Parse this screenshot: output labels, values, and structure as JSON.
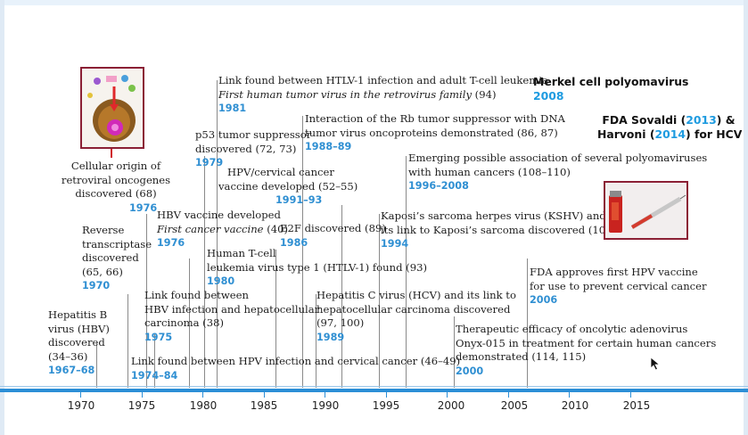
{
  "events": [
    {
      "id": "hbv",
      "lines": [
        "Hepatitis B",
        "virus (HBV)",
        "discovered",
        "(34–36)"
      ],
      "year": "1967–68"
    },
    {
      "id": "rt",
      "lines": [
        "Reverse",
        "transcriptase",
        "discovered",
        "(65, 66)"
      ],
      "year": "1970"
    },
    {
      "id": "onco",
      "lines": [
        "Cellular origin of",
        "retroviral oncogenes",
        "discovered (68)"
      ],
      "year": "1976"
    },
    {
      "id": "hbvvac",
      "lines": [
        "HBV vaccine developed"
      ],
      "italic": "First cancer vaccine",
      "ref": " (40)",
      "year": "1976"
    },
    {
      "id": "hbvhcc",
      "lines": [
        "Link found between",
        "HBV infection and hepatocellular",
        "carcinoma (38)"
      ],
      "year": "1975"
    },
    {
      "id": "hpvcc",
      "lines": [
        "Link found between HPV infection and cervical cancer (46–49)"
      ],
      "year": "1974–84"
    },
    {
      "id": "htlv1",
      "lines": [
        "Human T-cell",
        "leukemia virus type 1 (HTLV-1) found (93)"
      ],
      "year": "1980"
    },
    {
      "id": "p53",
      "lines": [
        "p53 tumor suppressor",
        "discovered (72, 73)"
      ],
      "year": "1979"
    },
    {
      "id": "atl",
      "lines": [
        "Link found between HTLV-1 infection and adult T-cell leukemia"
      ],
      "italic": "First human tumor virus in the retrovirus family",
      "ref": " (94)",
      "year": "1981"
    },
    {
      "id": "hpvvac",
      "lines": [
        "HPV/cervical cancer",
        "vaccine developed (52–55)"
      ],
      "year": "1991–93"
    },
    {
      "id": "e2f",
      "lines": [
        "E2F discovered (89)"
      ],
      "year": "1986"
    },
    {
      "id": "rb",
      "lines": [
        "Interaction of the Rb tumor suppressor with DNA",
        "tumor virus oncoproteins demonstrated (86, 87)"
      ],
      "year": "1988–89"
    },
    {
      "id": "hcv",
      "lines": [
        "Hepatitis C virus (HCV) and its link to",
        "hepatocellular carcinoma discovered",
        "(97, 100)"
      ],
      "year": "1989"
    },
    {
      "id": "kshv",
      "lines": [
        "Kaposi’s sarcoma herpes virus (KSHV) and",
        "its link to Kaposi’s sarcoma discovered (104)"
      ],
      "year": "1994"
    },
    {
      "id": "polyoma",
      "lines": [
        "Emerging possible association of several polyomaviruses",
        "with human cancers (108–110)"
      ],
      "year": "1996–2008"
    },
    {
      "id": "onyx",
      "lines": [
        "Therapeutic efficacy of oncolytic adenovirus",
        "Onyx-015 in treatment for certain human cancers",
        "demonstrated (114, 115)"
      ],
      "year": "2000"
    },
    {
      "id": "fdahpv",
      "lines": [
        "FDA approves first HPV vaccine",
        "for use to prevent cervical cancer"
      ],
      "year": "2006"
    }
  ],
  "merkel": {
    "title": "Merkel cell polyomavirus",
    "year": "2008"
  },
  "fda_hcv": {
    "p1": "FDA Sovaldi (",
    "y1": "2013",
    "p2": ") &",
    "p3": "Harvoni (",
    "y2": "2014",
    "p4": ") for HCV"
  },
  "axis": {
    "ticks": [
      "1970",
      "1975",
      "1980",
      "1985",
      "1990",
      "1995",
      "2000",
      "2005",
      "2010",
      "2015"
    ]
  },
  "images": {
    "cell": "cell-diagram-illustration",
    "vaccine": "vaccine-vial-and-syringe-photo"
  },
  "colors": {
    "year_blue": "#2f8fd2",
    "axis_blue": "#2b8ed6",
    "frame_red": "#8b2035"
  }
}
